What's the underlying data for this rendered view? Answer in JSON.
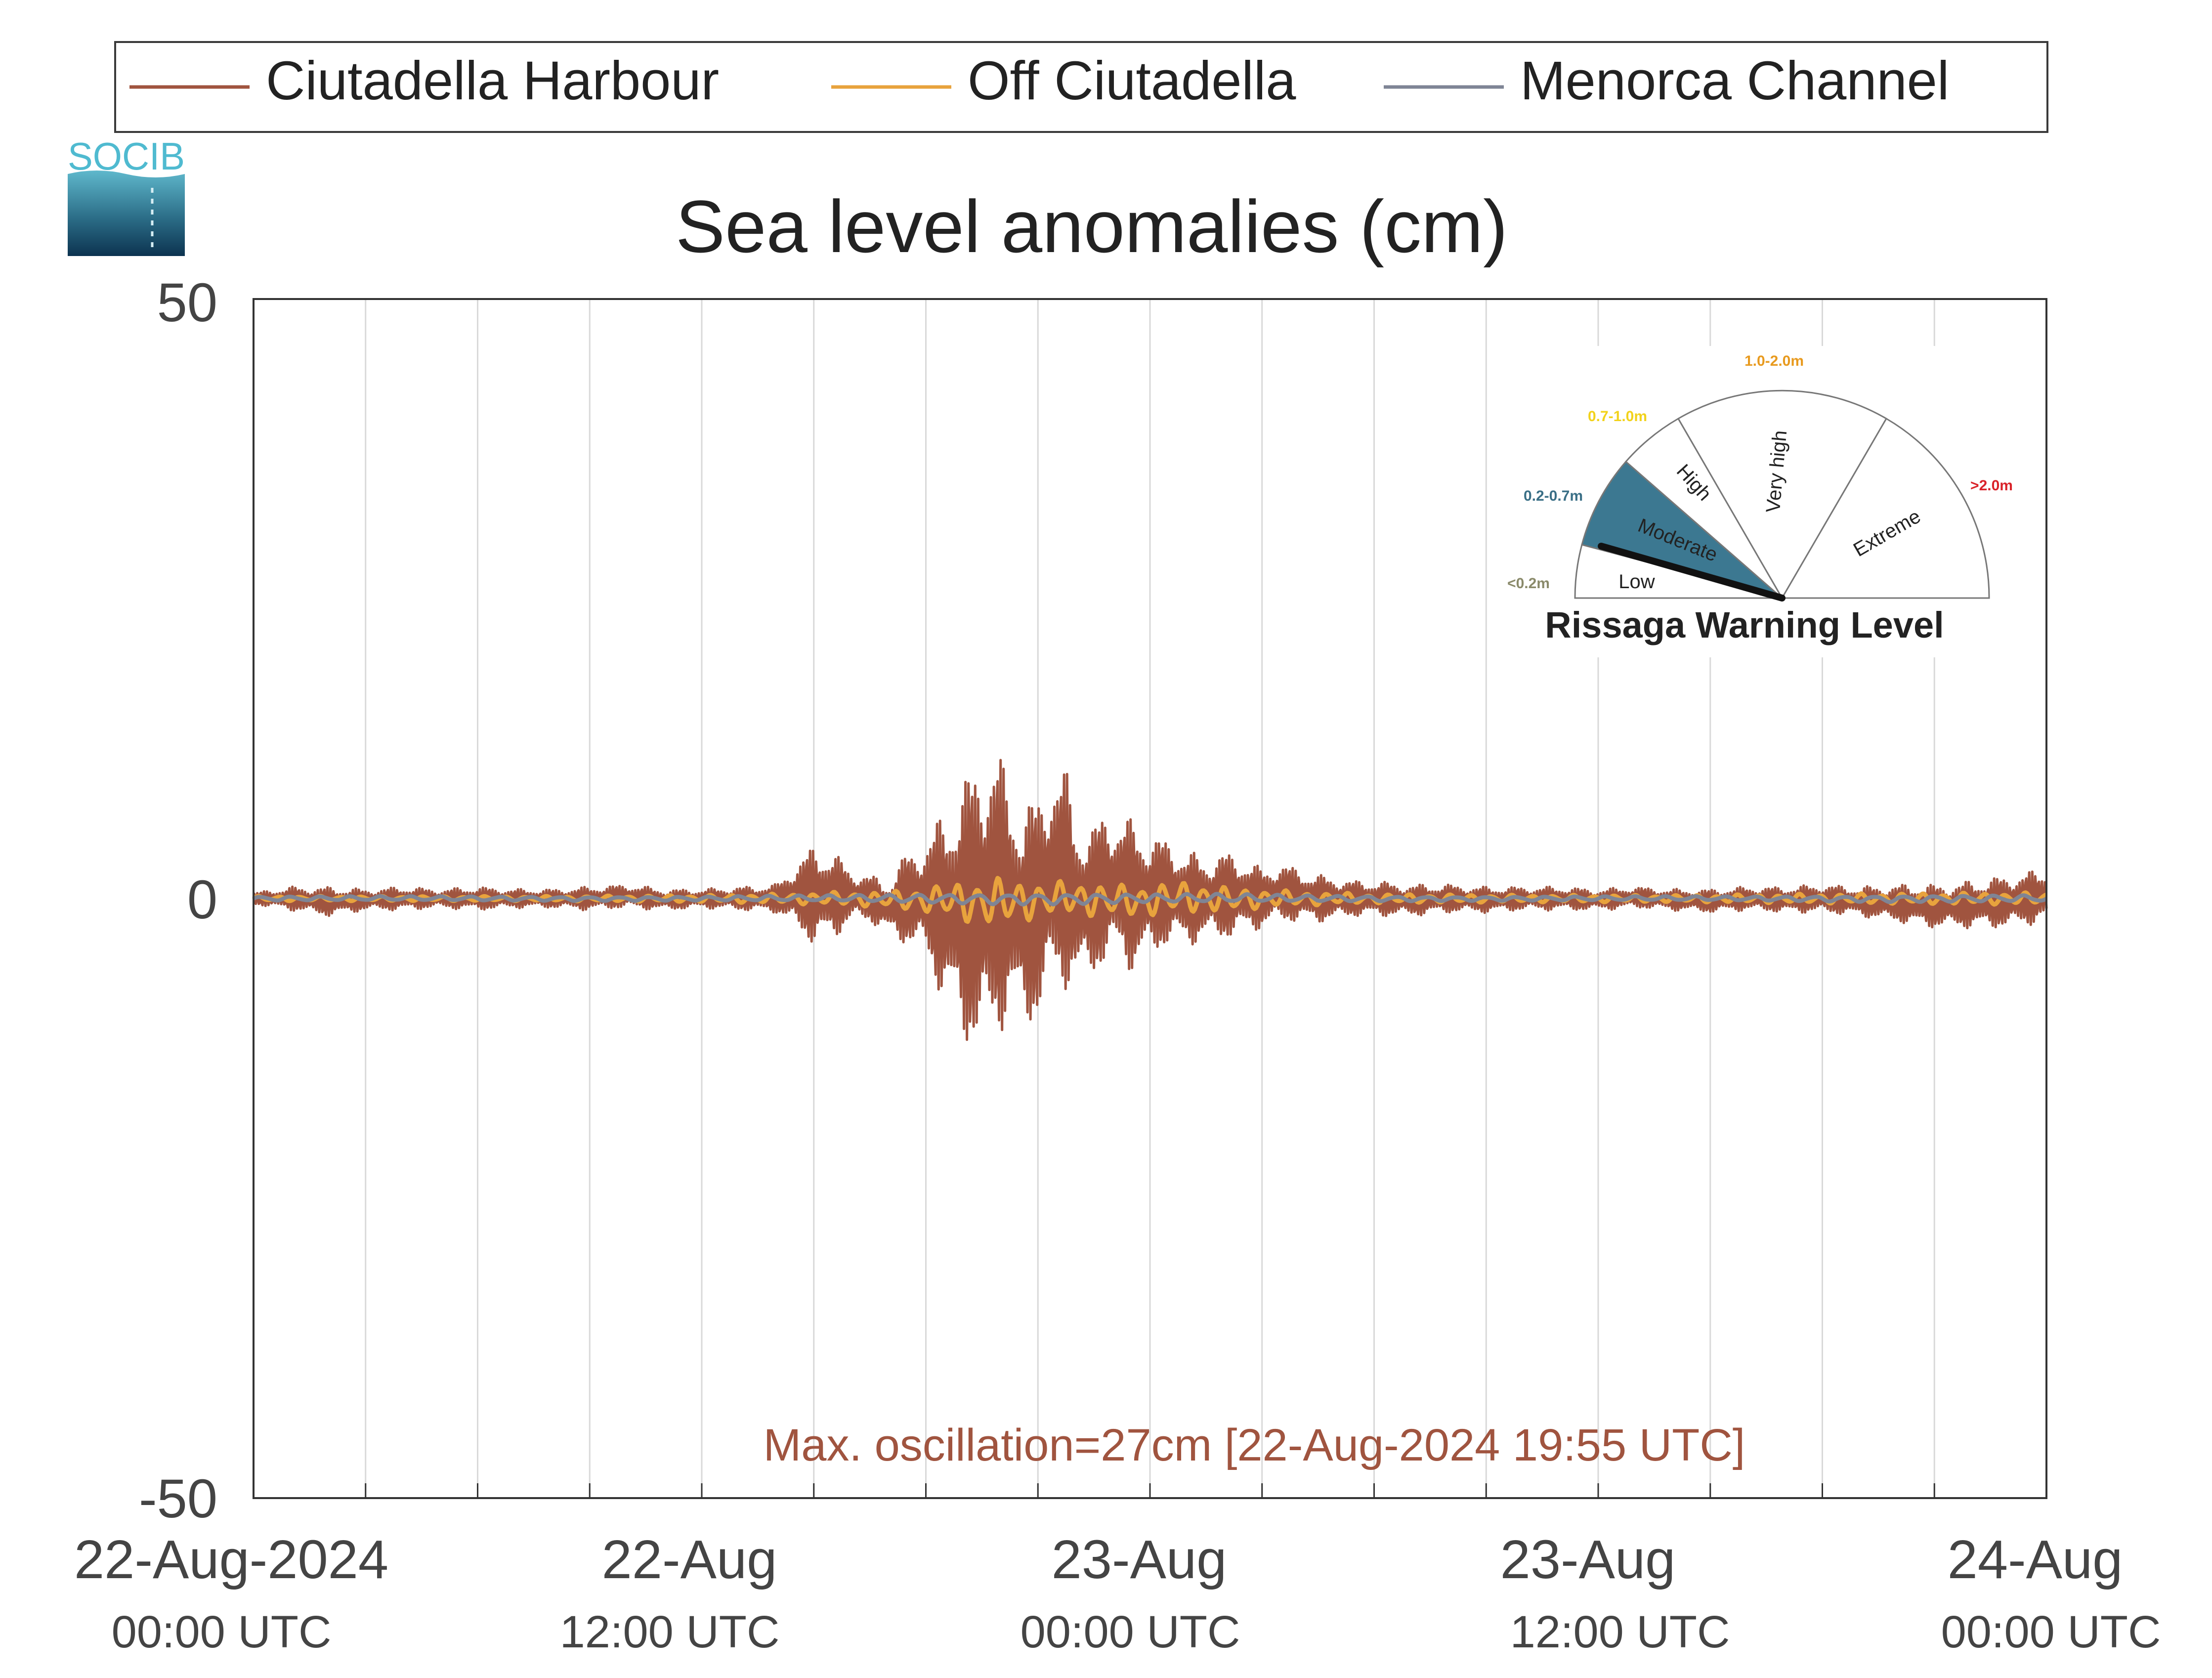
{
  "logo": {
    "text": "SOCIB"
  },
  "chart_data": {
    "type": "line",
    "title": "Sea level anomalies (cm)",
    "xlabel": "",
    "ylabel": "",
    "ylim": [
      -50,
      50
    ],
    "xlim_hours": [
      0,
      48
    ],
    "grid": "vertical",
    "legend_placement": "top",
    "y_ticks": [
      50,
      0,
      -50
    ],
    "y_tick_labels": [
      "50",
      "0",
      "-50"
    ],
    "x_ticks": [
      {
        "hour": 0,
        "line1": "22-Aug-2024",
        "line2": "00:00 UTC"
      },
      {
        "hour": 12,
        "line1": "22-Aug",
        "line2": "12:00 UTC"
      },
      {
        "hour": 24,
        "line1": "23-Aug",
        "line2": "00:00 UTC"
      },
      {
        "hour": 36,
        "line1": "23-Aug",
        "line2": "12:00 UTC"
      },
      {
        "hour": 48,
        "line1": "24-Aug",
        "line2": "00:00 UTC"
      }
    ],
    "x_gridlines_hours": [
      3,
      6,
      9,
      12,
      15,
      18,
      21,
      24,
      27,
      30,
      33,
      36,
      39,
      42,
      45
    ],
    "series": [
      {
        "name": "Ciutadella Harbour",
        "color": "#a0543f",
        "x": [
          0,
          1,
          2,
          3,
          4,
          5,
          6,
          7,
          8,
          9,
          10,
          11,
          12,
          13,
          14,
          14.5,
          15,
          15.5,
          16,
          16.5,
          17,
          17.5,
          18,
          18.5,
          19,
          19.5,
          19.9,
          20.2,
          20.6,
          21,
          21.4,
          21.8,
          22,
          22.4,
          22.8,
          23.2,
          23.6,
          24,
          24.5,
          25,
          25.5,
          26,
          26.5,
          27,
          27.5,
          28,
          28.5,
          29,
          29.5,
          30,
          31,
          32,
          33,
          34,
          35,
          36,
          37,
          38,
          39,
          40,
          41,
          42,
          43,
          44,
          45,
          46,
          47,
          48
        ],
        "upper": [
          0.5,
          1.0,
          1.0,
          0.8,
          1.0,
          0.8,
          1.0,
          0.8,
          0.8,
          1.0,
          1.2,
          0.8,
          0.8,
          1.0,
          1.2,
          3.0,
          4.5,
          4.0,
          2.5,
          2.0,
          1.5,
          4.0,
          5.0,
          7.5,
          10.0,
          13.0,
          13.0,
          10.0,
          8.0,
          9.0,
          11.5,
          10.5,
          7.0,
          6.0,
          7.5,
          7.0,
          6.5,
          5.5,
          5.0,
          4.0,
          3.5,
          4.0,
          3.5,
          2.5,
          3.0,
          2.5,
          2.0,
          1.8,
          1.5,
          1.5,
          1.2,
          1.2,
          1.0,
          1.0,
          1.0,
          0.8,
          1.0,
          0.8,
          0.8,
          1.0,
          1.0,
          1.2,
          1.0,
          1.2,
          1.2,
          1.5,
          2.0,
          2.5
        ],
        "lower": [
          -0.5,
          -1.0,
          -1.5,
          -1.0,
          -1.0,
          -0.8,
          -1.0,
          -0.8,
          -0.8,
          -1.0,
          -0.8,
          -1.0,
          -0.8,
          -1.0,
          -1.2,
          -2.5,
          -4.0,
          -3.5,
          -2.0,
          -2.0,
          -3.0,
          -4.0,
          -5.0,
          -9.0,
          -12.0,
          -14.0,
          -12.0,
          -10.0,
          -11.0,
          -10.5,
          -8.0,
          -7.5,
          -8.0,
          -6.5,
          -6.0,
          -5.0,
          -6.5,
          -5.0,
          -4.0,
          -4.0,
          -3.5,
          -3.5,
          -3.0,
          -2.5,
          -2.0,
          -2.0,
          -2.0,
          -1.8,
          -1.5,
          -1.5,
          -1.5,
          -1.2,
          -1.2,
          -1.0,
          -1.0,
          -1.0,
          -0.8,
          -1.0,
          -1.2,
          -1.0,
          -1.2,
          -1.2,
          -1.5,
          -2.0,
          -2.5,
          -2.5,
          -2.5,
          -2.0
        ]
      },
      {
        "name": "Off Ciutadella",
        "color": "#e8a33d",
        "x": [
          0,
          4,
          8,
          12,
          14,
          16,
          17,
          18,
          19,
          20,
          21,
          22,
          23,
          24,
          25,
          26,
          27,
          28,
          30,
          34,
          38,
          42,
          46,
          48
        ],
        "upper": [
          0.2,
          0.2,
          0.2,
          0.3,
          0.4,
          0.6,
          0.6,
          1.0,
          1.5,
          1.8,
          1.4,
          1.5,
          1.2,
          1.2,
          1.5,
          1.0,
          0.8,
          0.6,
          0.4,
          0.3,
          0.3,
          0.4,
          0.5,
          0.5
        ],
        "lower": [
          -0.2,
          -0.2,
          -0.2,
          -0.3,
          -0.4,
          -0.6,
          -0.8,
          -1.2,
          -2.0,
          -2.5,
          -1.6,
          -1.4,
          -1.6,
          -1.5,
          -1.2,
          -1.2,
          -0.8,
          -0.6,
          -0.4,
          -0.3,
          -0.3,
          -0.4,
          -0.5,
          -0.5
        ]
      },
      {
        "name": "Menorca Channel",
        "color": "#7f8595",
        "x": [
          0,
          6,
          12,
          16,
          18,
          20,
          22,
          24,
          26,
          28,
          32,
          36,
          40,
          44,
          48
        ],
        "upper": [
          0.2,
          0.2,
          0.2,
          0.3,
          0.4,
          0.5,
          0.5,
          0.4,
          0.4,
          0.3,
          0.2,
          0.2,
          0.2,
          0.3,
          0.3
        ],
        "lower": [
          -0.2,
          -0.2,
          -0.2,
          -0.3,
          -0.4,
          -0.5,
          -0.5,
          -0.4,
          -0.4,
          -0.3,
          -0.2,
          -0.2,
          -0.2,
          -0.3,
          -0.3
        ]
      }
    ],
    "annotation": {
      "text": "Max. oscillation=27cm [22-Aug-2024 19:55 UTC]",
      "color": "#a0543f"
    }
  },
  "gauge": {
    "title": "Rissaga Warning Level",
    "current_level": "Moderate",
    "segments": [
      {
        "label": "Low",
        "range": "<0.2m",
        "range_color": "#8a8a6a",
        "active": false
      },
      {
        "label": "Moderate",
        "range": "0.2-0.7m",
        "range_color": "#3a6f86",
        "active": true
      },
      {
        "label": "High",
        "range": "0.7-1.0m",
        "range_color": "#f2d21b",
        "active": false
      },
      {
        "label": "Very high",
        "range": "1.0-2.0m",
        "range_color": "#e89a1e",
        "active": false
      },
      {
        "label": "Extreme",
        "range": ">2.0m",
        "range_color": "#d9232a",
        "active": false
      }
    ],
    "active_fill": "#3c7891"
  }
}
